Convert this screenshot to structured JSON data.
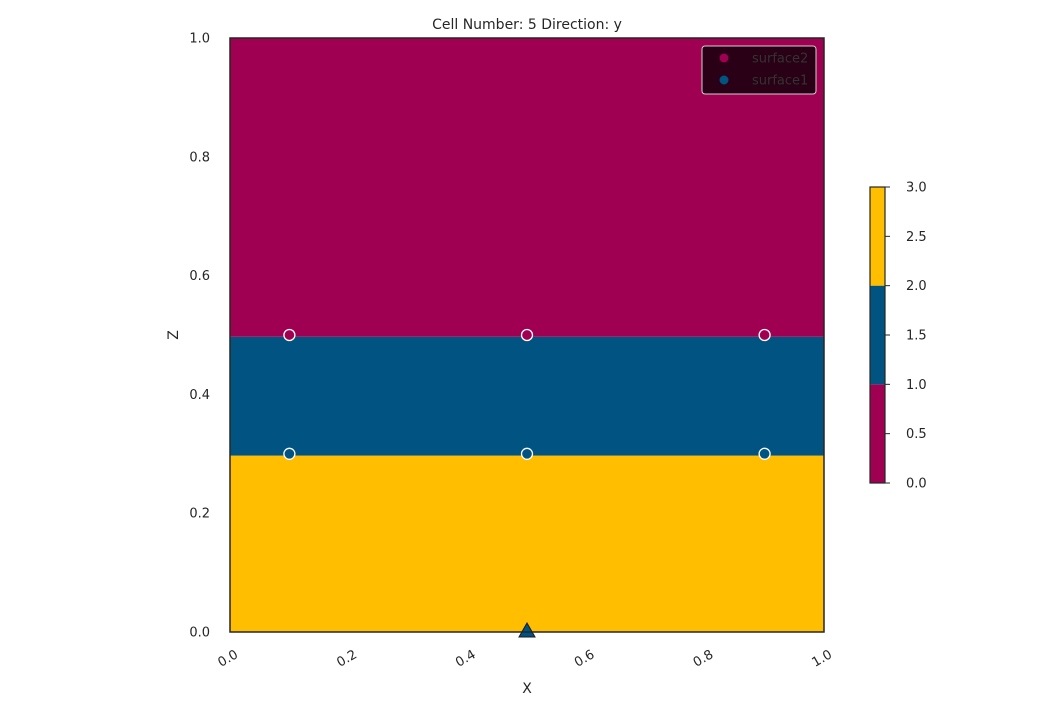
{
  "chart_data": {
    "type": "heatmap",
    "title": "Cell Number: 5 Direction: y",
    "xlabel": "X",
    "ylabel": "Z",
    "xlim": [
      0.0,
      1.0
    ],
    "ylim": [
      0.0,
      1.0
    ],
    "x_ticks": [
      "0.0",
      "0.2",
      "0.4",
      "0.6",
      "0.8",
      "1.0"
    ],
    "y_ticks": [
      "0.0",
      "0.2",
      "0.4",
      "0.6",
      "0.8",
      "1.0"
    ],
    "grid": false,
    "legend_position": "top-right",
    "layers": [
      {
        "z_bottom": 0.0,
        "z_top": 0.297,
        "value": 3,
        "color": "#ffbe00"
      },
      {
        "z_bottom": 0.297,
        "z_top": 0.497,
        "value": 2,
        "color": "#015482"
      },
      {
        "z_bottom": 0.497,
        "z_top": 1.0,
        "value": 1,
        "color": "#9f0052"
      }
    ],
    "series": [
      {
        "name": "surface2",
        "color": "#9f0052",
        "points": [
          {
            "x": 0.1,
            "z": 0.5
          },
          {
            "x": 0.5,
            "z": 0.5
          },
          {
            "x": 0.9,
            "z": 0.5
          }
        ]
      },
      {
        "name": "surface1",
        "color": "#015482",
        "points": [
          {
            "x": 0.1,
            "z": 0.3
          },
          {
            "x": 0.5,
            "z": 0.3
          },
          {
            "x": 0.9,
            "z": 0.3
          }
        ]
      }
    ],
    "orientation_markers": [
      {
        "x": 0.5,
        "z": 0.0,
        "shape": "triangle",
        "color": "#015482"
      }
    ],
    "colorbar": {
      "range": [
        0.0,
        3.0
      ],
      "ticks": [
        "0.0",
        "0.5",
        "1.0",
        "1.5",
        "2.0",
        "2.5",
        "3.0"
      ],
      "segments": [
        {
          "from": 0.0,
          "to": 1.0,
          "color": "#9f0052"
        },
        {
          "from": 1.0,
          "to": 2.0,
          "color": "#015482"
        },
        {
          "from": 2.0,
          "to": 3.0,
          "color": "#ffbe00"
        }
      ]
    }
  }
}
